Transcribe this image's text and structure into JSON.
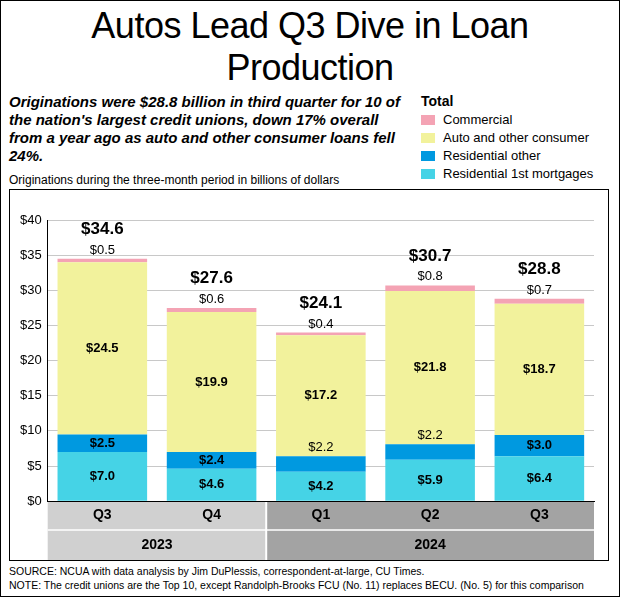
{
  "chart_data": {
    "type": "bar",
    "title": "Autos Lead Q3 Dive in Loan Production",
    "subtitle": "Originations were $28.8 billion in third quarter for 10 of the nation's largest credit unions, down 17% overall from a year ago as auto and other consumer loans fell 24%.",
    "y_label": "Originations during the three-month period in billions of dollars",
    "categories": [
      "Q3",
      "Q4",
      "Q1",
      "Q2",
      "Q3"
    ],
    "category_groups": [
      {
        "label": "2023",
        "span": 2
      },
      {
        "label": "2024",
        "span": 3
      }
    ],
    "series": [
      {
        "name": "Residential 1st mortgages",
        "color": "#45d3e6",
        "values": [
          7.0,
          4.6,
          4.2,
          5.9,
          6.4
        ],
        "value_labels": [
          "$7.0",
          "$4.6",
          "$4.2",
          "$5.9",
          "$6.4"
        ]
      },
      {
        "name": "Residential other",
        "color": "#0099e0",
        "values": [
          2.5,
          2.4,
          2.2,
          2.2,
          3.0
        ],
        "value_labels": [
          "$2.5",
          "$2.4",
          "$2.2",
          "$2.2",
          "$3.0"
        ]
      },
      {
        "name": "Auto and other consumer",
        "color": "#f2f29c",
        "values": [
          24.5,
          19.9,
          17.2,
          21.8,
          18.7
        ],
        "value_labels": [
          "$24.5",
          "$19.9",
          "$17.2",
          "$21.8",
          "$18.7"
        ]
      },
      {
        "name": "Commercial",
        "color": "#f4a3b4",
        "values": [
          0.5,
          0.6,
          0.4,
          0.8,
          0.7
        ],
        "value_labels": [
          "$0.5",
          "$0.6",
          "$0.4",
          "$0.8",
          "$0.7"
        ]
      }
    ],
    "totals": {
      "name": "Total",
      "values": [
        34.6,
        27.6,
        24.1,
        30.7,
        28.8
      ],
      "value_labels": [
        "$34.6",
        "$27.6",
        "$24.1",
        "$30.7",
        "$28.8"
      ]
    },
    "ylim": [
      0,
      40
    ],
    "yticks": [
      {
        "value": 0,
        "label": "$0"
      },
      {
        "value": 5,
        "label": "$5"
      },
      {
        "value": 10,
        "label": "$10"
      },
      {
        "value": 15,
        "label": "$15"
      },
      {
        "value": 20,
        "label": "$20"
      },
      {
        "value": 25,
        "label": "$25"
      },
      {
        "value": 30,
        "label": "$30"
      },
      {
        "value": 35,
        "label": "$35"
      },
      {
        "value": 40,
        "label": "$40"
      }
    ],
    "grid": true,
    "stacked": true,
    "data_labels": true,
    "legend": "top-right",
    "source": "SOURCE: NCUA with data analysis by Jim DuPlessis, correspondent-at-large, CU Times.",
    "note": "NOTE: The credit unions are the Top 10, except Randolph-Brooks FCU (No. 11) replaces BECU. (No. 5) for this comparison"
  }
}
